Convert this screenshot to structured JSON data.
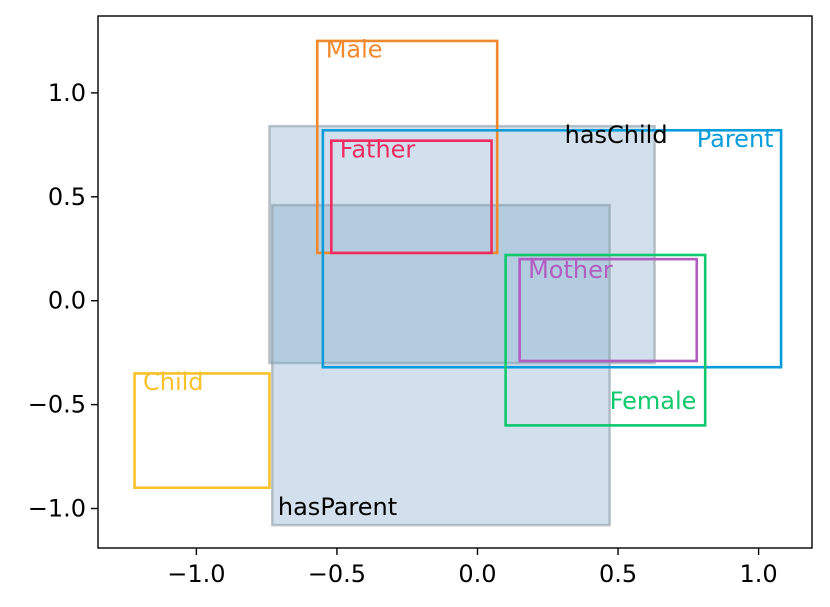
{
  "chart_data": {
    "type": "box-embedding",
    "title": "",
    "xlabel": "",
    "ylabel": "",
    "xlim": [
      -1.35,
      1.19
    ],
    "ylim": [
      -1.19,
      1.37
    ],
    "grid": false,
    "xticks": [
      -1.0,
      -0.5,
      0.0,
      0.5,
      1.0
    ],
    "xtick_labels": [
      "−1.0",
      "−0.5",
      "0.0",
      "0.5",
      "1.0"
    ],
    "yticks": [
      1.0,
      0.5,
      0.0,
      -0.5,
      -1.0
    ],
    "ytick_labels": [
      "1.0",
      "0.5",
      "0.0",
      "−0.5",
      "−1.0"
    ],
    "relations": [
      {
        "name": "hasChild",
        "color": "#7aa6c8",
        "stroke": "#8e9ca6",
        "boxes": [
          {
            "x0": -0.74,
            "x1": 0.63,
            "y0": -0.3,
            "y1": 0.84
          },
          {
            "x0": -0.73,
            "x1": 0.47,
            "y0": -1.08,
            "y1": 0.46
          }
        ],
        "label_pos": {
          "x": 0.31,
          "y": 0.76
        }
      },
      {
        "name": "hasParent",
        "color": "#7aa6c8",
        "stroke": "#8e9ca6",
        "boxes": [],
        "label_pos": {
          "x": -0.71,
          "y": -1.03
        }
      }
    ],
    "concepts": [
      {
        "name": "Male",
        "color": "#f0892e",
        "x0": -0.57,
        "x1": 0.07,
        "y0": 0.23,
        "y1": 1.25,
        "label_pos": {
          "x": -0.54,
          "y": 1.17
        }
      },
      {
        "name": "Father",
        "color": "#ef2c62",
        "x0": -0.52,
        "x1": 0.05,
        "y0": 0.23,
        "y1": 0.77,
        "label_pos": {
          "x": -0.49,
          "y": 0.69
        }
      },
      {
        "name": "Parent",
        "color": "#079ddc",
        "x0": -0.55,
        "x1": 1.08,
        "y0": -0.32,
        "y1": 0.82,
        "label_pos": {
          "x": 0.78,
          "y": 0.74
        }
      },
      {
        "name": "Mother",
        "color": "#b25ec0",
        "x0": 0.15,
        "x1": 0.78,
        "y0": -0.29,
        "y1": 0.2,
        "label_pos": {
          "x": 0.18,
          "y": 0.11
        }
      },
      {
        "name": "Female",
        "color": "#0ec96c",
        "x0": 0.1,
        "x1": 0.81,
        "y0": -0.6,
        "y1": 0.22,
        "label_pos": {
          "x": 0.47,
          "y": -0.52
        }
      },
      {
        "name": "Child",
        "color": "#f9c22b",
        "x0": -1.22,
        "x1": -0.74,
        "y0": -0.9,
        "y1": -0.35,
        "label_pos": {
          "x": -1.19,
          "y": -0.43
        }
      }
    ]
  }
}
